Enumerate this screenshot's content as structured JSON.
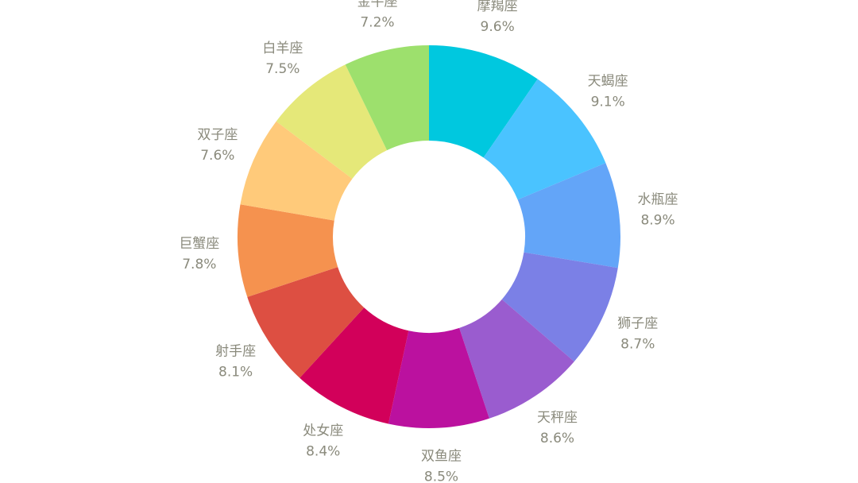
{
  "chart_data": {
    "type": "donut",
    "categories": [
      "摩羯座",
      "天蝎座",
      "水瓶座",
      "狮子座",
      "天秤座",
      "双鱼座",
      "处女座",
      "射手座",
      "巨蟹座",
      "双子座",
      "白羊座",
      "金牛座"
    ],
    "values": [
      9.6,
      9.1,
      8.9,
      8.7,
      8.6,
      8.5,
      8.4,
      8.1,
      7.8,
      7.6,
      7.5,
      7.2
    ],
    "value_labels": [
      "9.6%",
      "9.1%",
      "8.9%",
      "8.7%",
      "8.6%",
      "8.5%",
      "8.4%",
      "8.1%",
      "7.8%",
      "7.6%",
      "7.5%",
      "7.2%"
    ],
    "colors": [
      "#00c8df",
      "#4ac3ff",
      "#63a5f8",
      "#7b80e6",
      "#9a5ccf",
      "#bb119f",
      "#d2005a",
      "#dd4f42",
      "#f5924f",
      "#ffca7a",
      "#e5e879",
      "#9de06d"
    ]
  }
}
